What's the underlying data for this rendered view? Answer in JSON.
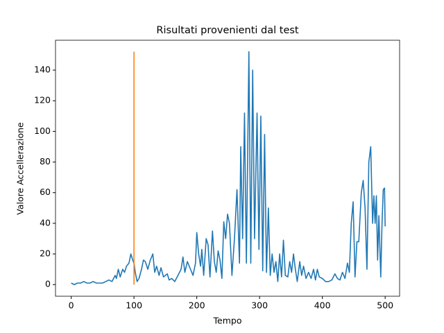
{
  "chart_data": {
    "type": "line",
    "title": "Risultati provenienti dal test",
    "xlabel": "Tempo",
    "ylabel": "Valore Accellerazione",
    "xlim": [
      -25,
      523
    ],
    "ylim": [
      -7.6,
      159.5
    ],
    "xticks": [
      0,
      100,
      200,
      300,
      400,
      500
    ],
    "yticks": [
      0,
      20,
      40,
      60,
      80,
      100,
      120,
      140
    ],
    "series": [
      {
        "color": "#1f77b4",
        "x": [
          0,
          5,
          10,
          15,
          20,
          25,
          30,
          35,
          40,
          45,
          50,
          55,
          60,
          65,
          70,
          72,
          75,
          78,
          82,
          85,
          88,
          92,
          95,
          98,
          100,
          102,
          105,
          108,
          112,
          115,
          118,
          122,
          126,
          130,
          133,
          136,
          140,
          143,
          147,
          150,
          153,
          156,
          160,
          165,
          170,
          175,
          178,
          181,
          185,
          190,
          194,
          198,
          200,
          203,
          206,
          208,
          211,
          215,
          218,
          221,
          225,
          228,
          231,
          234,
          237,
          240,
          243,
          246,
          249,
          252,
          256,
          260,
          264,
          268,
          270,
          273,
          276,
          279,
          283,
          286,
          289,
          292,
          296,
          299,
          302,
          305,
          308,
          311,
          314,
          317,
          320,
          323,
          326,
          329,
          332,
          335,
          338,
          341,
          345,
          348,
          351,
          354,
          357,
          360,
          364,
          367,
          370,
          374,
          378,
          382,
          386,
          389,
          392,
          395,
          400,
          405,
          410,
          415,
          420,
          424,
          428,
          432,
          436,
          440,
          443,
          446,
          449,
          452,
          455,
          458,
          462,
          465,
          468,
          471,
          474,
          477,
          480,
          482,
          484,
          486,
          488,
          490,
          493,
          495,
          497,
          499,
          500
        ],
        "values": [
          1,
          0,
          1,
          1,
          2,
          1,
          1,
          2,
          1,
          1,
          1,
          2,
          3,
          2,
          6,
          4,
          10,
          5,
          10,
          8,
          12,
          14,
          20,
          16,
          14,
          8,
          2,
          4,
          10,
          16,
          15,
          10,
          16,
          20,
          8,
          12,
          6,
          11,
          5,
          6,
          7,
          3,
          4,
          2,
          6,
          10,
          18,
          8,
          15,
          10,
          6,
          14,
          34,
          20,
          12,
          23,
          6,
          30,
          26,
          5,
          35,
          15,
          8,
          22,
          16,
          4,
          41,
          30,
          46,
          40,
          6,
          30,
          62,
          14,
          90,
          30,
          112,
          14,
          152,
          14,
          140,
          30,
          112,
          23,
          110,
          9,
          98,
          8,
          50,
          6,
          20,
          8,
          15,
          2,
          20,
          5,
          29,
          6,
          5,
          15,
          8,
          20,
          10,
          2,
          15,
          6,
          12,
          4,
          8,
          4,
          10,
          3,
          10,
          5,
          4,
          2,
          2,
          3,
          7,
          4,
          3,
          8,
          4,
          14,
          8,
          40,
          54,
          5,
          28,
          28,
          60,
          68,
          50,
          10,
          80,
          90,
          40,
          58,
          40,
          58,
          16,
          45,
          5,
          40,
          62,
          63,
          38
        ]
      },
      {
        "color": "#ff7f0e",
        "x": [
          100,
          100
        ],
        "values": [
          0,
          152
        ]
      }
    ]
  }
}
